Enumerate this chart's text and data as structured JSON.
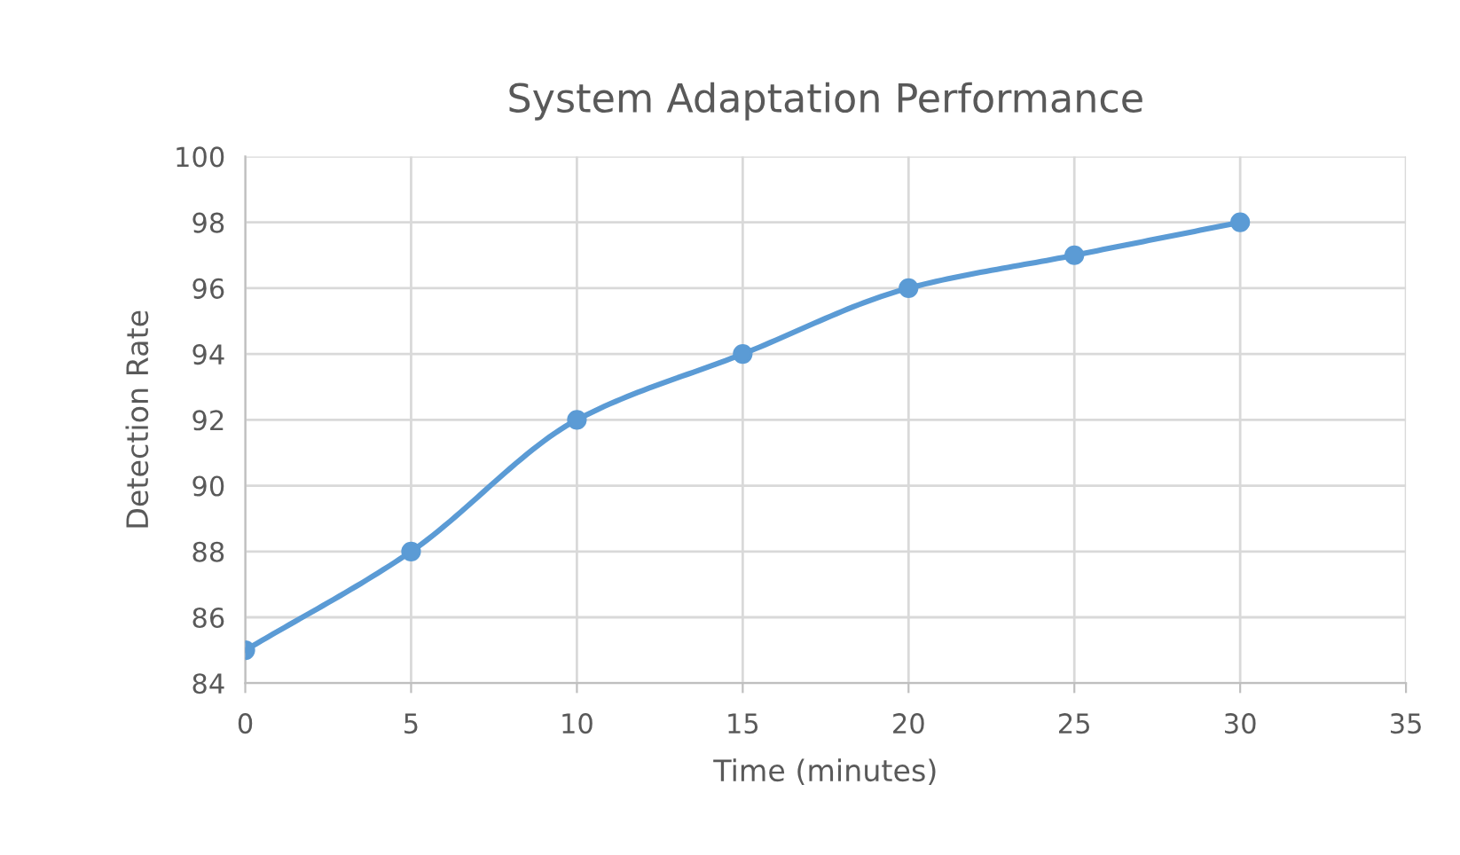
{
  "chart_data": {
    "type": "line",
    "title": "System Adaptation Performance",
    "xlabel": "Time (minutes)",
    "ylabel": "Detection Rate",
    "x": [
      0,
      5,
      10,
      15,
      20,
      25,
      30
    ],
    "series": [
      {
        "color": "#5b9bd5",
        "values": [
          85,
          88,
          92,
          94,
          96,
          97,
          98
        ]
      }
    ],
    "xlim": [
      0,
      35
    ],
    "xticks": [
      0,
      5,
      10,
      15,
      20,
      25,
      30,
      35
    ],
    "ylim": [
      84,
      100
    ],
    "yticks": [
      84,
      86,
      88,
      90,
      92,
      94,
      96,
      98,
      100
    ],
    "grid": true,
    "marker": "circle",
    "line_style": "solid"
  }
}
